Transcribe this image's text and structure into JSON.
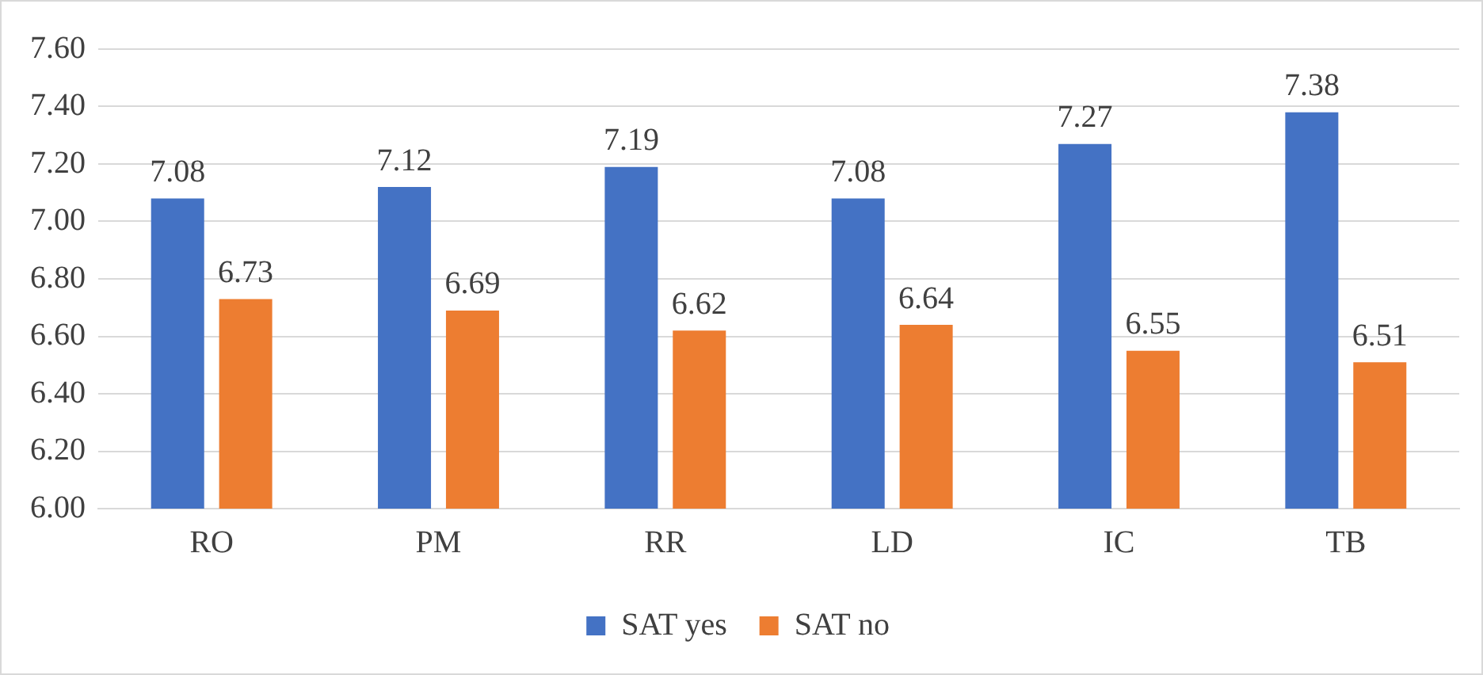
{
  "chart_data": {
    "type": "bar",
    "categories": [
      "RO",
      "PM",
      "RR",
      "LD",
      "IC",
      "TB"
    ],
    "series": [
      {
        "name": "SAT yes",
        "color": "#4472c4",
        "values": [
          7.08,
          7.12,
          7.19,
          7.08,
          7.27,
          7.38
        ]
      },
      {
        "name": "SAT no",
        "color": "#ed7d31",
        "values": [
          6.73,
          6.69,
          6.62,
          6.64,
          6.55,
          6.51
        ]
      }
    ],
    "ylim": [
      6.0,
      7.6
    ],
    "yticks": [
      {
        "value": 6.0,
        "label": "6.00"
      },
      {
        "value": 6.2,
        "label": "6.20"
      },
      {
        "value": 6.4,
        "label": "6.40"
      },
      {
        "value": 6.6,
        "label": "6.60"
      },
      {
        "value": 6.8,
        "label": "6.80"
      },
      {
        "value": 7.0,
        "label": "7.00"
      },
      {
        "value": 7.2,
        "label": "7.20"
      },
      {
        "value": 7.4,
        "label": "7.40"
      },
      {
        "value": 7.6,
        "label": "7.60"
      }
    ],
    "grid": "y",
    "legend": "bottom",
    "data_labels": true
  }
}
